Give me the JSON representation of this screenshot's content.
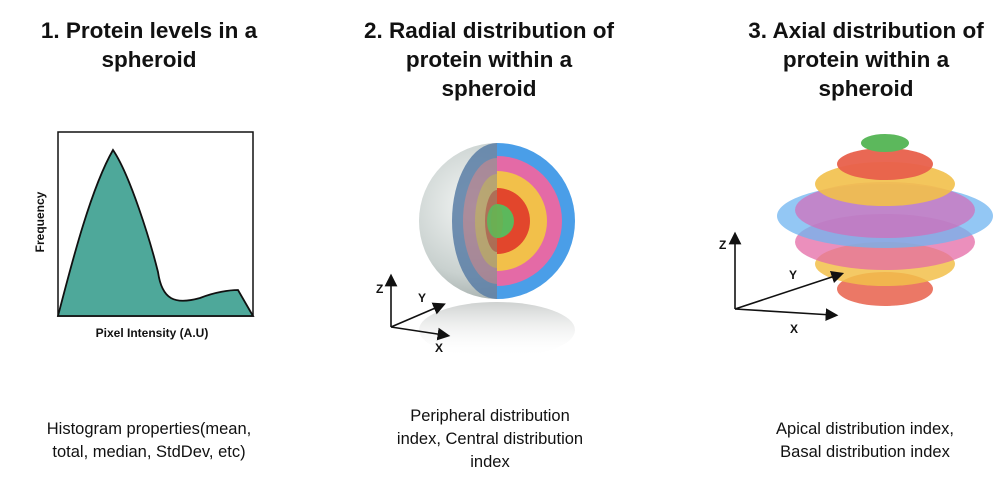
{
  "panels": [
    {
      "title": "1. Protein levels in a\nspheroid",
      "caption": "Histogram properties(mean,\ntotal, median, StdDev, etc)",
      "xlabel": "Pixel Intensity (A.U)",
      "ylabel": "Frequency"
    },
    {
      "title": "2. Radial distribution of\nprotein within a\nspheroid",
      "caption": "Peripheral distribution\nindex, Central distribution\nindex",
      "axes": {
        "z": "Z",
        "y": "Y",
        "x": "X"
      }
    },
    {
      "title": "3. Axial distribution of\nprotein within a\nspheroid",
      "caption": "Apical distribution index,\nBasal distribution index",
      "axes": {
        "z": "Z",
        "y": "Y",
        "x": "X"
      }
    }
  ],
  "colors": {
    "histogram_fill": "#4ea89a",
    "ring_blue": "#4a9ee8",
    "ring_pink": "#e46aa6",
    "ring_yellow": "#f2c04a",
    "ring_red": "#e2462c",
    "ring_green": "#5cb85c",
    "sphere_grey": "#b9c3c1"
  }
}
